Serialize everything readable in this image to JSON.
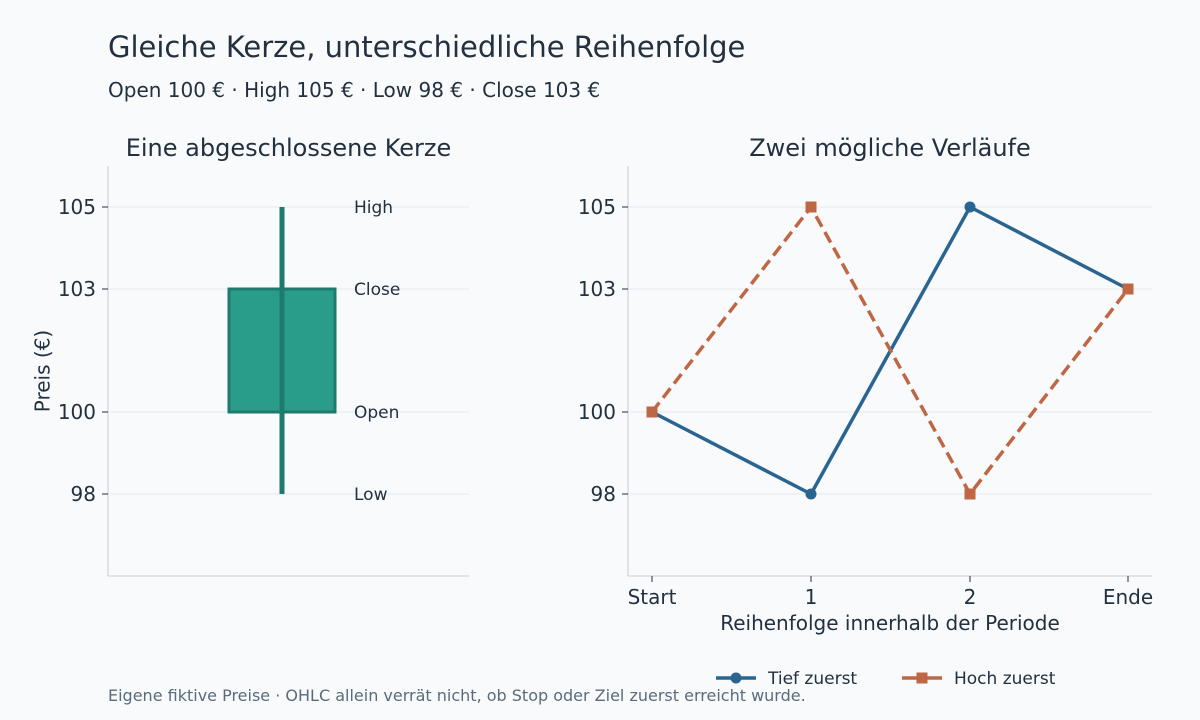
{
  "title": "Gleiche Kerze, unterschiedliche Reihenfolge",
  "subtitle": "Open 100 € · High 105 € · Low 98 € · Close 103 €",
  "footnote": "Eigene fiktive Preise · OHLC allein verrät nicht, ob Stop oder Ziel zuerst erreicht wurde.",
  "colors": {
    "candle_body": "#2a9d8a",
    "candle_edge": "#1e7a6c",
    "series_low_first": "#2a6491",
    "series_high_first": "#bf6744",
    "grid": "#e6eaee",
    "axis": "#c8cfd6"
  },
  "chart_data": [
    {
      "type": "candlestick",
      "title": "Eine abgeschlossene Kerze",
      "ylabel": "Preis (€)",
      "xlabel": "",
      "yticks": [
        98,
        100,
        103,
        105
      ],
      "ylim": [
        96.0,
        106.0
      ],
      "grid": true,
      "ohlc": {
        "open": 100,
        "high": 105,
        "low": 98,
        "close": 103
      },
      "annotations": [
        {
          "label": "High",
          "value": 105
        },
        {
          "label": "Close",
          "value": 103
        },
        {
          "label": "Open",
          "value": 100
        },
        {
          "label": "Low",
          "value": 98
        }
      ]
    },
    {
      "type": "line",
      "title": "Zwei mögliche Verläufe",
      "xlabel": "Reihenfolge innerhalb der Periode",
      "ylabel": "",
      "categories": [
        "Start",
        "1",
        "2",
        "Ende"
      ],
      "yticks": [
        98,
        100,
        103,
        105
      ],
      "ylim": [
        96.0,
        106.0
      ],
      "grid": true,
      "legend_position": "bottom",
      "series": [
        {
          "name": "Tief zuerst",
          "values": [
            100,
            98,
            105,
            103
          ],
          "marker": "circle",
          "style": "solid"
        },
        {
          "name": "Hoch zuerst",
          "values": [
            100,
            105,
            98,
            103
          ],
          "marker": "square",
          "style": "dashed"
        }
      ]
    }
  ]
}
